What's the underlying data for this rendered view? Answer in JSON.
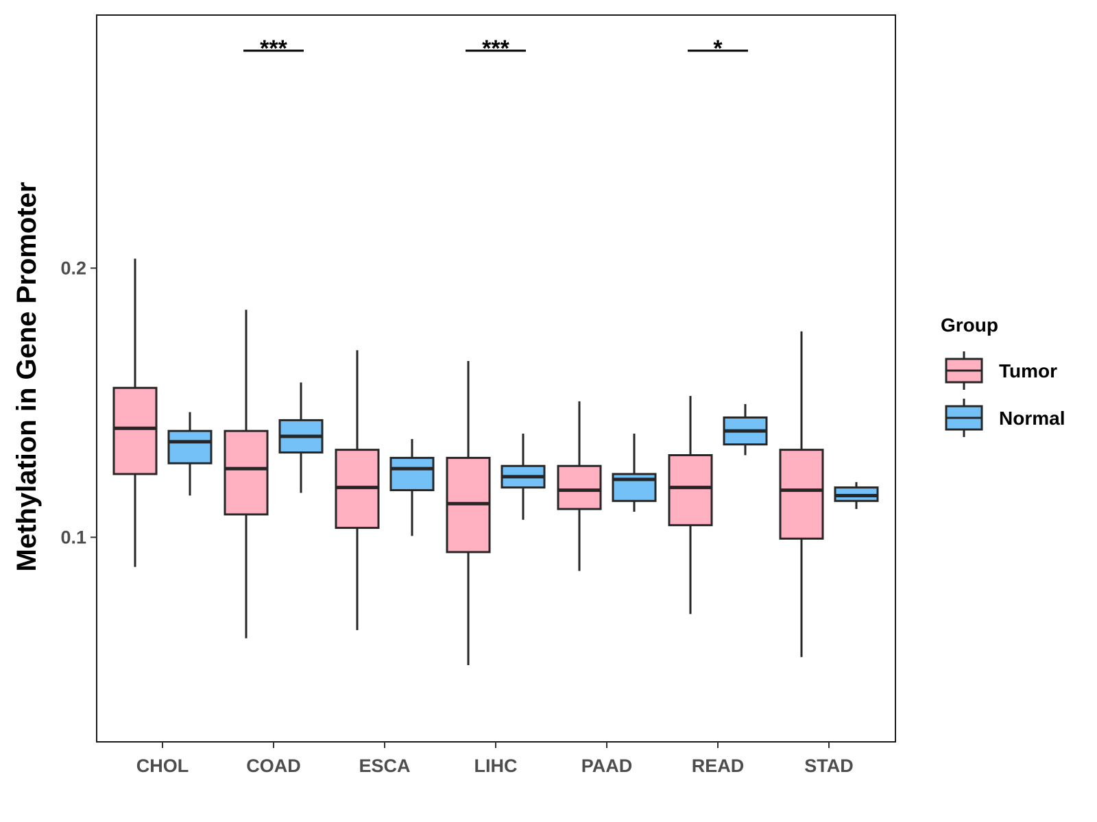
{
  "chart_data": {
    "type": "boxplot",
    "title": "",
    "xlabel": "",
    "ylabel": "Methylation in Gene Promoter",
    "ylim": [
      0.024,
      0.294
    ],
    "yticks": [
      0.1,
      0.2
    ],
    "ytick_labels": [
      "0.1",
      "0.2"
    ],
    "grid": false,
    "categories": [
      "CHOL",
      "COAD",
      "ESCA",
      "LIHC",
      "PAAD",
      "READ",
      "STAD"
    ],
    "series": [
      {
        "name": "Tumor",
        "color": "#FFB0C1",
        "boxes": [
          {
            "min": 0.089,
            "q1": 0.1235,
            "median": 0.1405,
            "q3": 0.1555,
            "max": 0.2035
          },
          {
            "min": 0.0625,
            "q1": 0.1085,
            "median": 0.1255,
            "q3": 0.1395,
            "max": 0.1845
          },
          {
            "min": 0.0655,
            "q1": 0.1035,
            "median": 0.1185,
            "q3": 0.1325,
            "max": 0.1695
          },
          {
            "min": 0.0525,
            "q1": 0.0945,
            "median": 0.1125,
            "q3": 0.1295,
            "max": 0.1655
          },
          {
            "min": 0.0875,
            "q1": 0.1105,
            "median": 0.1175,
            "q3": 0.1265,
            "max": 0.1505
          },
          {
            "min": 0.0715,
            "q1": 0.1045,
            "median": 0.1185,
            "q3": 0.1305,
            "max": 0.1525
          },
          {
            "min": 0.0555,
            "q1": 0.0995,
            "median": 0.1175,
            "q3": 0.1325,
            "max": 0.1765
          }
        ]
      },
      {
        "name": "Normal",
        "color": "#74C1F8",
        "boxes": [
          {
            "min": 0.1155,
            "q1": 0.1275,
            "median": 0.1355,
            "q3": 0.1395,
            "max": 0.1465
          },
          {
            "min": 0.1165,
            "q1": 0.1315,
            "median": 0.1375,
            "q3": 0.1435,
            "max": 0.1575
          },
          {
            "min": 0.1005,
            "q1": 0.1175,
            "median": 0.1255,
            "q3": 0.1295,
            "max": 0.1365
          },
          {
            "min": 0.1065,
            "q1": 0.1185,
            "median": 0.1225,
            "q3": 0.1265,
            "max": 0.1385
          },
          {
            "min": 0.1095,
            "q1": 0.1135,
            "median": 0.1215,
            "q3": 0.1235,
            "max": 0.1385
          },
          {
            "min": 0.1305,
            "q1": 0.1345,
            "median": 0.1395,
            "q3": 0.1445,
            "max": 0.1495
          },
          {
            "min": 0.1105,
            "q1": 0.1135,
            "median": 0.1155,
            "q3": 0.1185,
            "max": 0.1205
          }
        ]
      }
    ],
    "significance": [
      {
        "category": "COAD",
        "label": "***"
      },
      {
        "category": "LIHC",
        "label": "***"
      },
      {
        "category": "READ",
        "label": "*"
      }
    ],
    "legend": {
      "title": "Group",
      "position": "right",
      "entries": [
        "Tumor",
        "Normal"
      ]
    }
  }
}
